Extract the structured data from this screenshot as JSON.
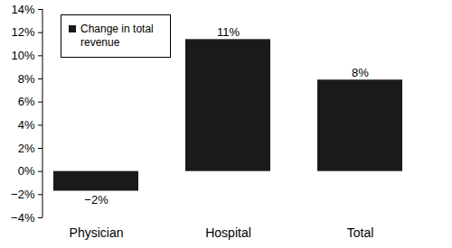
{
  "chart_data": {
    "type": "bar",
    "categories": [
      "Physician",
      "Hospital",
      "Total"
    ],
    "series": [
      {
        "name": "Change in total revenue",
        "color": "#1a1a1a",
        "values": [
          -1.7,
          11.4,
          7.9
        ],
        "value_labels": [
          "−2%",
          "11%",
          "8%"
        ]
      }
    ],
    "ylim": [
      -4,
      14
    ],
    "yticks": [
      {
        "value": -4,
        "label": "−4%"
      },
      {
        "value": -2,
        "label": "−2%"
      },
      {
        "value": 0,
        "label": "0%"
      },
      {
        "value": 2,
        "label": "2%"
      },
      {
        "value": 4,
        "label": "4%"
      },
      {
        "value": 6,
        "label": "6%"
      },
      {
        "value": 8,
        "label": "8%"
      },
      {
        "value": 10,
        "label": "10%"
      },
      {
        "value": 12,
        "label": "12%"
      },
      {
        "value": 14,
        "label": "14%"
      }
    ],
    "grid": false,
    "legend": "top-left",
    "data_labels": true
  }
}
